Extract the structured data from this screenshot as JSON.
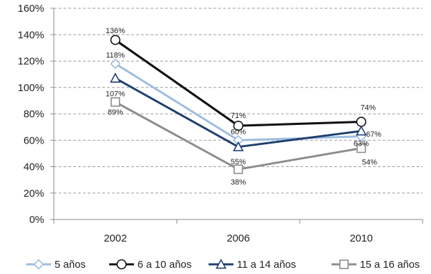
{
  "chart_data": {
    "type": "line",
    "title": "",
    "xlabel": "",
    "ylabel": "",
    "categories": [
      "2002",
      "2006",
      "2010"
    ],
    "ylim": [
      0,
      160
    ],
    "y_ticks": [
      "0%",
      "20%",
      "40%",
      "60%",
      "80%",
      "100%",
      "120%",
      "140%",
      "160%"
    ],
    "grid": "horizontal dashed",
    "legend_position": "bottom",
    "series": [
      {
        "name": "5 años",
        "values": [
          118,
          60,
          63
        ],
        "labels": [
          "118%",
          "60%",
          "63%"
        ],
        "color": "#9dbde0",
        "marker": "diamond"
      },
      {
        "name": "6 a 10 años",
        "values": [
          136,
          71,
          74
        ],
        "labels": [
          "136%",
          "71%",
          "74%"
        ],
        "color": "#111111",
        "marker": "circle"
      },
      {
        "name": "11 a 14 años",
        "values": [
          107,
          55,
          67
        ],
        "labels": [
          "107%",
          "55%",
          "67%"
        ],
        "color": "#1f3f6e",
        "marker": "triangle"
      },
      {
        "name": "15 a 16 años",
        "values": [
          89,
          38,
          54
        ],
        "labels": [
          "89%",
          "38%",
          "54%"
        ],
        "color": "#8c8c8c",
        "marker": "square"
      }
    ]
  }
}
